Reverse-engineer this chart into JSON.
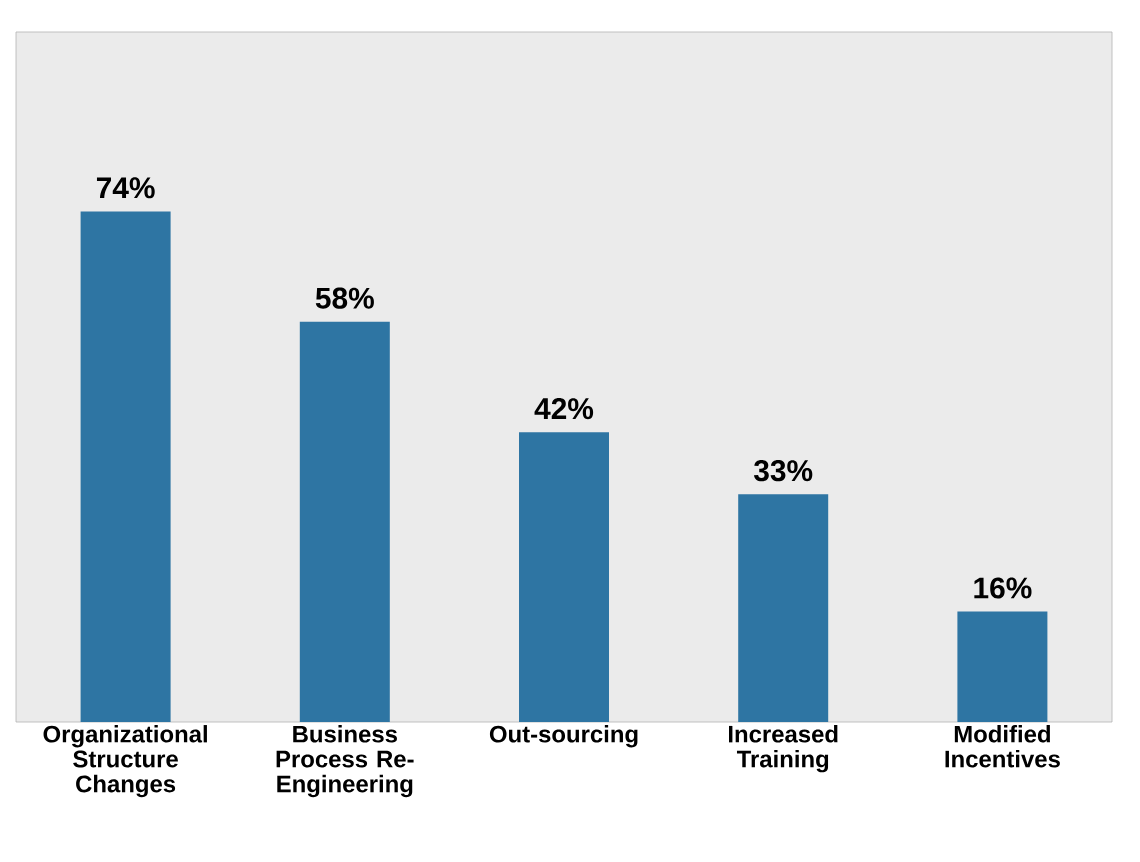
{
  "chart_data": {
    "type": "bar",
    "categories": [
      "Organizational Structure Changes",
      "Business Process Re-Engineering",
      "Out-sourcing",
      "Increased Training",
      "Modified Incentives"
    ],
    "values": [
      74,
      58,
      42,
      33,
      16
    ],
    "value_labels": [
      "74%",
      "58%",
      "42%",
      "33%",
      "16%"
    ],
    "color": "#2e75a3",
    "ylim": [
      0,
      100
    ],
    "tick_labels": "x"
  }
}
